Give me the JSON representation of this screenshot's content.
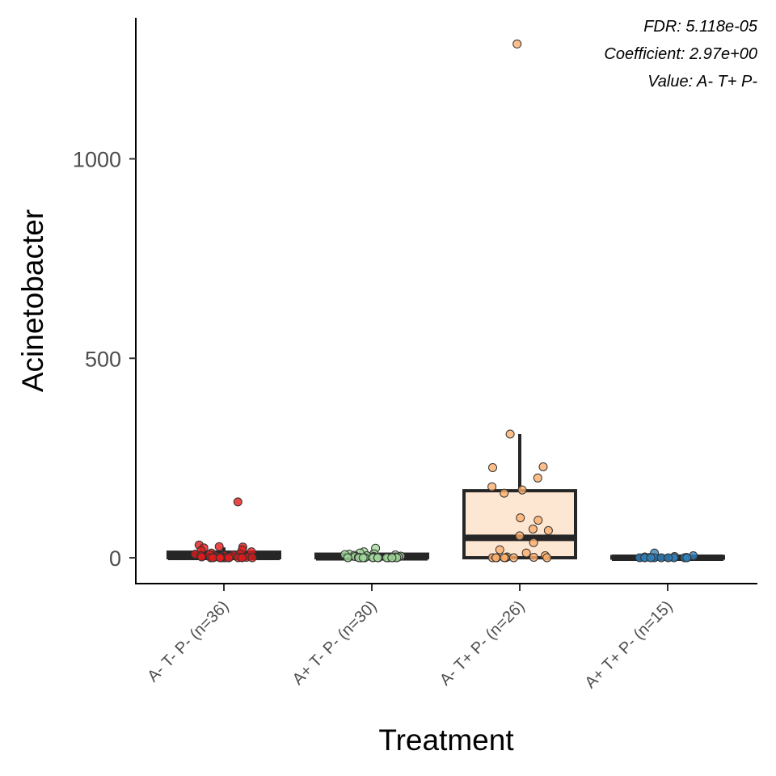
{
  "chart_data": {
    "type": "box",
    "title": "",
    "xlabel": "Treatment",
    "ylabel": "Acinetobacter",
    "ylim": [
      -65,
      1355
    ],
    "yticks": [
      0,
      500,
      1000
    ],
    "grid": false,
    "legend": "none",
    "annotations": [
      "FDR: 5.118e-05",
      "Coefficient: 2.97e+00",
      "Value: A- T+ P-"
    ],
    "categories": [
      "A- T- P- (n=36)",
      "A+ T- P- (n=30)",
      "A- T+ P- (n=26)",
      "A+ T+ P- (n=15)"
    ],
    "colors": [
      "#e31a1c",
      "#a1d99b",
      "#fdae6b",
      "#3182bd"
    ],
    "box_fill": [
      "#e31a1c",
      "#a1d99b",
      "#fdae6b",
      "#3182bd"
    ],
    "box_fill_opacity": [
      0.1,
      0.1,
      0.3,
      0.1
    ],
    "boxes": [
      {
        "q1": 0,
        "median": 2,
        "q3": 14,
        "whisker_low": 0,
        "whisker_high": 26
      },
      {
        "q1": 0,
        "median": 1,
        "q3": 9,
        "whisker_low": 0,
        "whisker_high": 18
      },
      {
        "q1": 0,
        "median": 50,
        "q3": 168,
        "whisker_low": 0,
        "whisker_high": 310
      },
      {
        "q1": 0,
        "median": 0,
        "q3": 3,
        "whisker_low": 0,
        "whisker_high": 8
      }
    ],
    "points": [
      {
        "group": 0,
        "values": [
          140,
          32,
          28,
          27,
          25,
          20,
          18,
          15,
          12,
          10,
          9,
          8,
          7,
          6,
          5,
          4,
          3,
          3,
          2,
          2,
          1,
          1,
          1,
          0,
          0,
          0,
          0,
          0,
          0,
          0,
          0,
          0,
          0,
          0,
          0,
          0
        ]
      },
      {
        "group": 1,
        "values": [
          24,
          15,
          12,
          10,
          9,
          8,
          7,
          6,
          5,
          4,
          3,
          3,
          2,
          2,
          1,
          1,
          1,
          0,
          0,
          0,
          0,
          0,
          0,
          0,
          0,
          0,
          0,
          0,
          0,
          0
        ]
      },
      {
        "group": 2,
        "values": [
          1288,
          310,
          228,
          226,
          200,
          178,
          170,
          162,
          100,
          94,
          72,
          68,
          55,
          38,
          20,
          12,
          5,
          2,
          1,
          0,
          0,
          0,
          0,
          0,
          0,
          0
        ]
      },
      {
        "group": 3,
        "values": [
          12,
          5,
          3,
          2,
          1,
          1,
          0,
          0,
          0,
          0,
          0,
          0,
          0,
          0,
          0
        ]
      }
    ]
  }
}
